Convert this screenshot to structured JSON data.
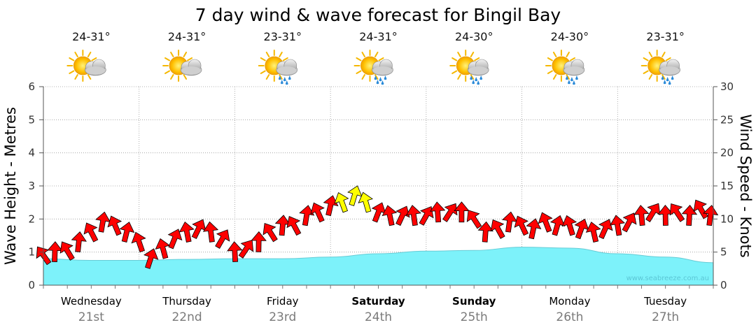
{
  "colors": {
    "wave_fill": "#7df2fa",
    "wave_stroke": "#66ccd6",
    "wind_arrow": "#ff0000",
    "wind_arrow_highlight": "#ffff00",
    "grid": "#9a9a9a"
  },
  "chart_data": {
    "type": "area",
    "title": "7 day wind & wave forecast for Bingil Bay",
    "ylabel_left": "Wave Height - Metres",
    "ylabel_right": "Wind Speed - Knots",
    "ylim_left": [
      0,
      6
    ],
    "ylim_right": [
      0,
      30
    ],
    "yticks_left": [
      "0",
      "1",
      "2",
      "3",
      "4",
      "5",
      "6"
    ],
    "yticks_right": [
      "0",
      "5",
      "10",
      "15",
      "20",
      "25",
      "30"
    ],
    "grid": true,
    "watermark": "www.seabreeze.com.au",
    "days": [
      {
        "name": "Wednesday",
        "date": "21st",
        "bold": false,
        "temp": "24-31°",
        "weather": "partly-cloudy"
      },
      {
        "name": "Thursday",
        "date": "22nd",
        "bold": false,
        "temp": "24-31°",
        "weather": "partly-cloudy"
      },
      {
        "name": "Friday",
        "date": "23rd",
        "bold": false,
        "temp": "23-31°",
        "weather": "showers"
      },
      {
        "name": "Saturday",
        "date": "24th",
        "bold": true,
        "temp": "24-31°",
        "weather": "showers"
      },
      {
        "name": "Sunday",
        "date": "25th",
        "bold": true,
        "temp": "24-30°",
        "weather": "showers"
      },
      {
        "name": "Monday",
        "date": "26th",
        "bold": false,
        "temp": "24-30°",
        "weather": "showers"
      },
      {
        "name": "Tuesday",
        "date": "27th",
        "bold": false,
        "temp": "23-31°",
        "weather": "showers"
      }
    ],
    "wave_series": {
      "name": "Wave height (m)",
      "x_days": [
        0,
        0.5,
        1,
        1.5,
        2,
        2.5,
        3,
        3.5,
        4,
        4.5,
        5,
        5.5,
        6,
        6.5,
        7
      ],
      "values": [
        0.8,
        0.75,
        0.75,
        0.78,
        0.8,
        0.8,
        0.85,
        0.95,
        1.03,
        1.05,
        1.15,
        1.12,
        0.95,
        0.85,
        0.68
      ]
    },
    "wind_series": {
      "name": "Wind speed (knots)",
      "x_days": [
        0,
        0.12,
        0.25,
        0.37,
        0.5,
        0.62,
        0.75,
        0.87,
        1.0,
        1.12,
        1.25,
        1.37,
        1.5,
        1.62,
        1.75,
        1.87,
        2.0,
        2.12,
        2.25,
        2.37,
        2.5,
        2.62,
        2.75,
        2.87,
        3.0,
        3.12,
        3.25,
        3.37,
        3.5,
        3.62,
        3.75,
        3.87,
        4.0,
        4.12,
        4.25,
        4.37,
        4.5,
        4.62,
        4.75,
        4.87,
        5.0,
        5.12,
        5.25,
        5.37,
        5.5,
        5.62,
        5.75,
        5.87,
        6.0,
        6.12,
        6.25,
        6.37,
        6.5,
        6.62,
        6.75,
        6.87,
        6.97
      ],
      "values": [
        4.5,
        5.0,
        5.2,
        6.5,
        8.0,
        9.5,
        9.0,
        8.0,
        6.5,
        4.0,
        5.5,
        7.0,
        8.0,
        8.5,
        8.0,
        7.0,
        5.0,
        5.5,
        6.5,
        8.0,
        9.0,
        9.0,
        10.5,
        11.0,
        12.0,
        12.5,
        13.5,
        12.5,
        11.0,
        10.5,
        10.5,
        10.5,
        10.5,
        11.0,
        11.0,
        11.0,
        10.0,
        8.0,
        8.5,
        9.5,
        9.0,
        8.5,
        9.5,
        9.0,
        9.0,
        8.5,
        8.0,
        8.5,
        9.0,
        9.5,
        10.5,
        11.0,
        10.5,
        11.0,
        10.5,
        11.5,
        10.5
      ],
      "highlight_x_days": [
        3.12,
        3.25,
        3.37
      ]
    }
  }
}
